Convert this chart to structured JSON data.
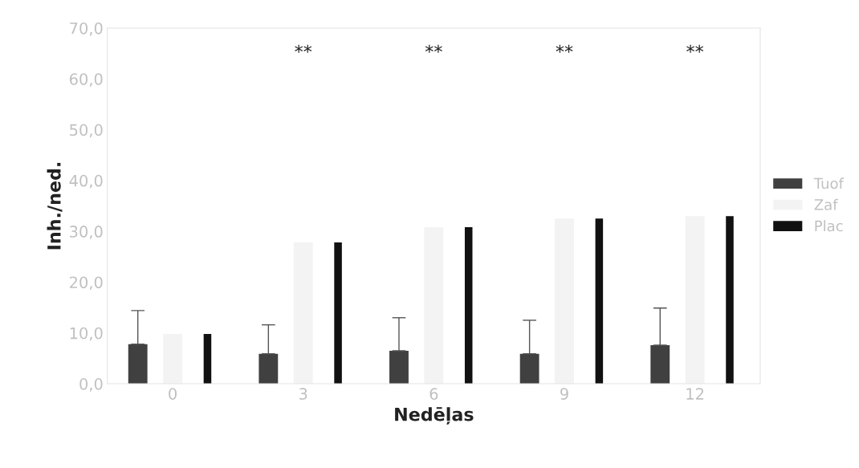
{
  "chart_data": {
    "type": "bar",
    "xlabel": "Nedēļas",
    "ylabel": "Inh./ned.",
    "categories": [
      "0",
      "3",
      "6",
      "9",
      "12"
    ],
    "series": [
      {
        "name": "Tuof",
        "color": "#404040",
        "values": [
          7.8,
          5.9,
          6.5,
          5.9,
          7.6
        ],
        "errors": [
          [
            7.8,
            14.4
          ],
          [
            5.9,
            11.6
          ],
          [
            6.5,
            13.0
          ],
          [
            5.9,
            12.5
          ],
          [
            7.6,
            14.9
          ]
        ]
      },
      {
        "name": "Zaf",
        "color": "#f3f3f3",
        "values": [
          9.8,
          27.8,
          30.8,
          32.5,
          33.0
        ]
      },
      {
        "name": "Plac",
        "color": "#111111",
        "values": [
          9.8,
          27.8,
          30.8,
          32.5,
          33.0
        ]
      }
    ],
    "ylim": [
      0,
      70
    ],
    "yticks": [
      {
        "value": 0,
        "label": "0,0"
      },
      {
        "value": 10,
        "label": "10,0"
      },
      {
        "value": 20,
        "label": "20,0"
      },
      {
        "value": 30,
        "label": "30,0"
      },
      {
        "value": 40,
        "label": "40,0"
      },
      {
        "value": 50,
        "label": "50,0"
      },
      {
        "value": 60,
        "label": "60,0"
      },
      {
        "value": 70,
        "label": "70,0"
      }
    ],
    "annotations": [
      "**",
      "**",
      "**",
      "**"
    ],
    "grid": false,
    "legend": "right"
  }
}
